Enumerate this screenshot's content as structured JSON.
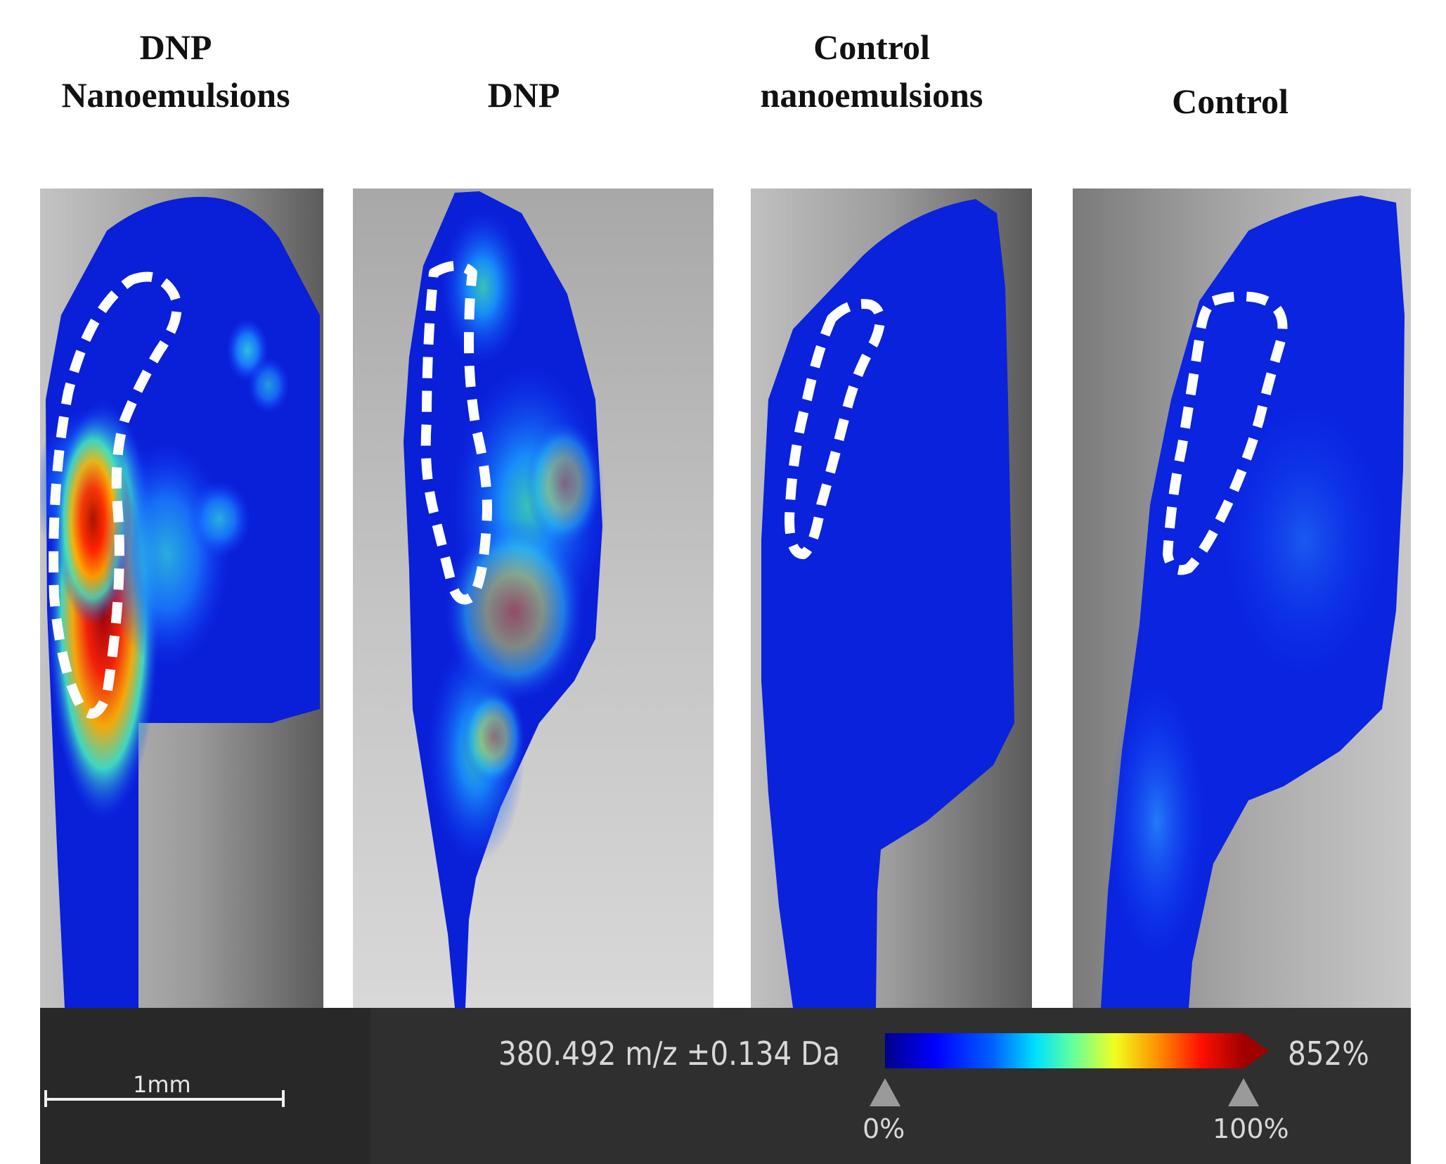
{
  "panels": [
    {
      "title_line1": "DNP",
      "title_line2": "Nanoemulsions"
    },
    {
      "title_line1": "",
      "title_line2": "DNP"
    },
    {
      "title_line1": "Control",
      "title_line2": "nanoemulsions"
    },
    {
      "title_line1": "",
      "title_line2": "Control"
    }
  ],
  "legend": {
    "mz_label": "380.492 m/z ±0.134 Da",
    "max_label": "852%",
    "min_marker": "0%",
    "max_marker": "100%",
    "scale_bar": "1mm"
  },
  "colors": {
    "tissue_base": "#0a1fd8",
    "hotspot_high": "#a80000",
    "roi_outline": "#ffffff",
    "bar_background": "#282828"
  }
}
